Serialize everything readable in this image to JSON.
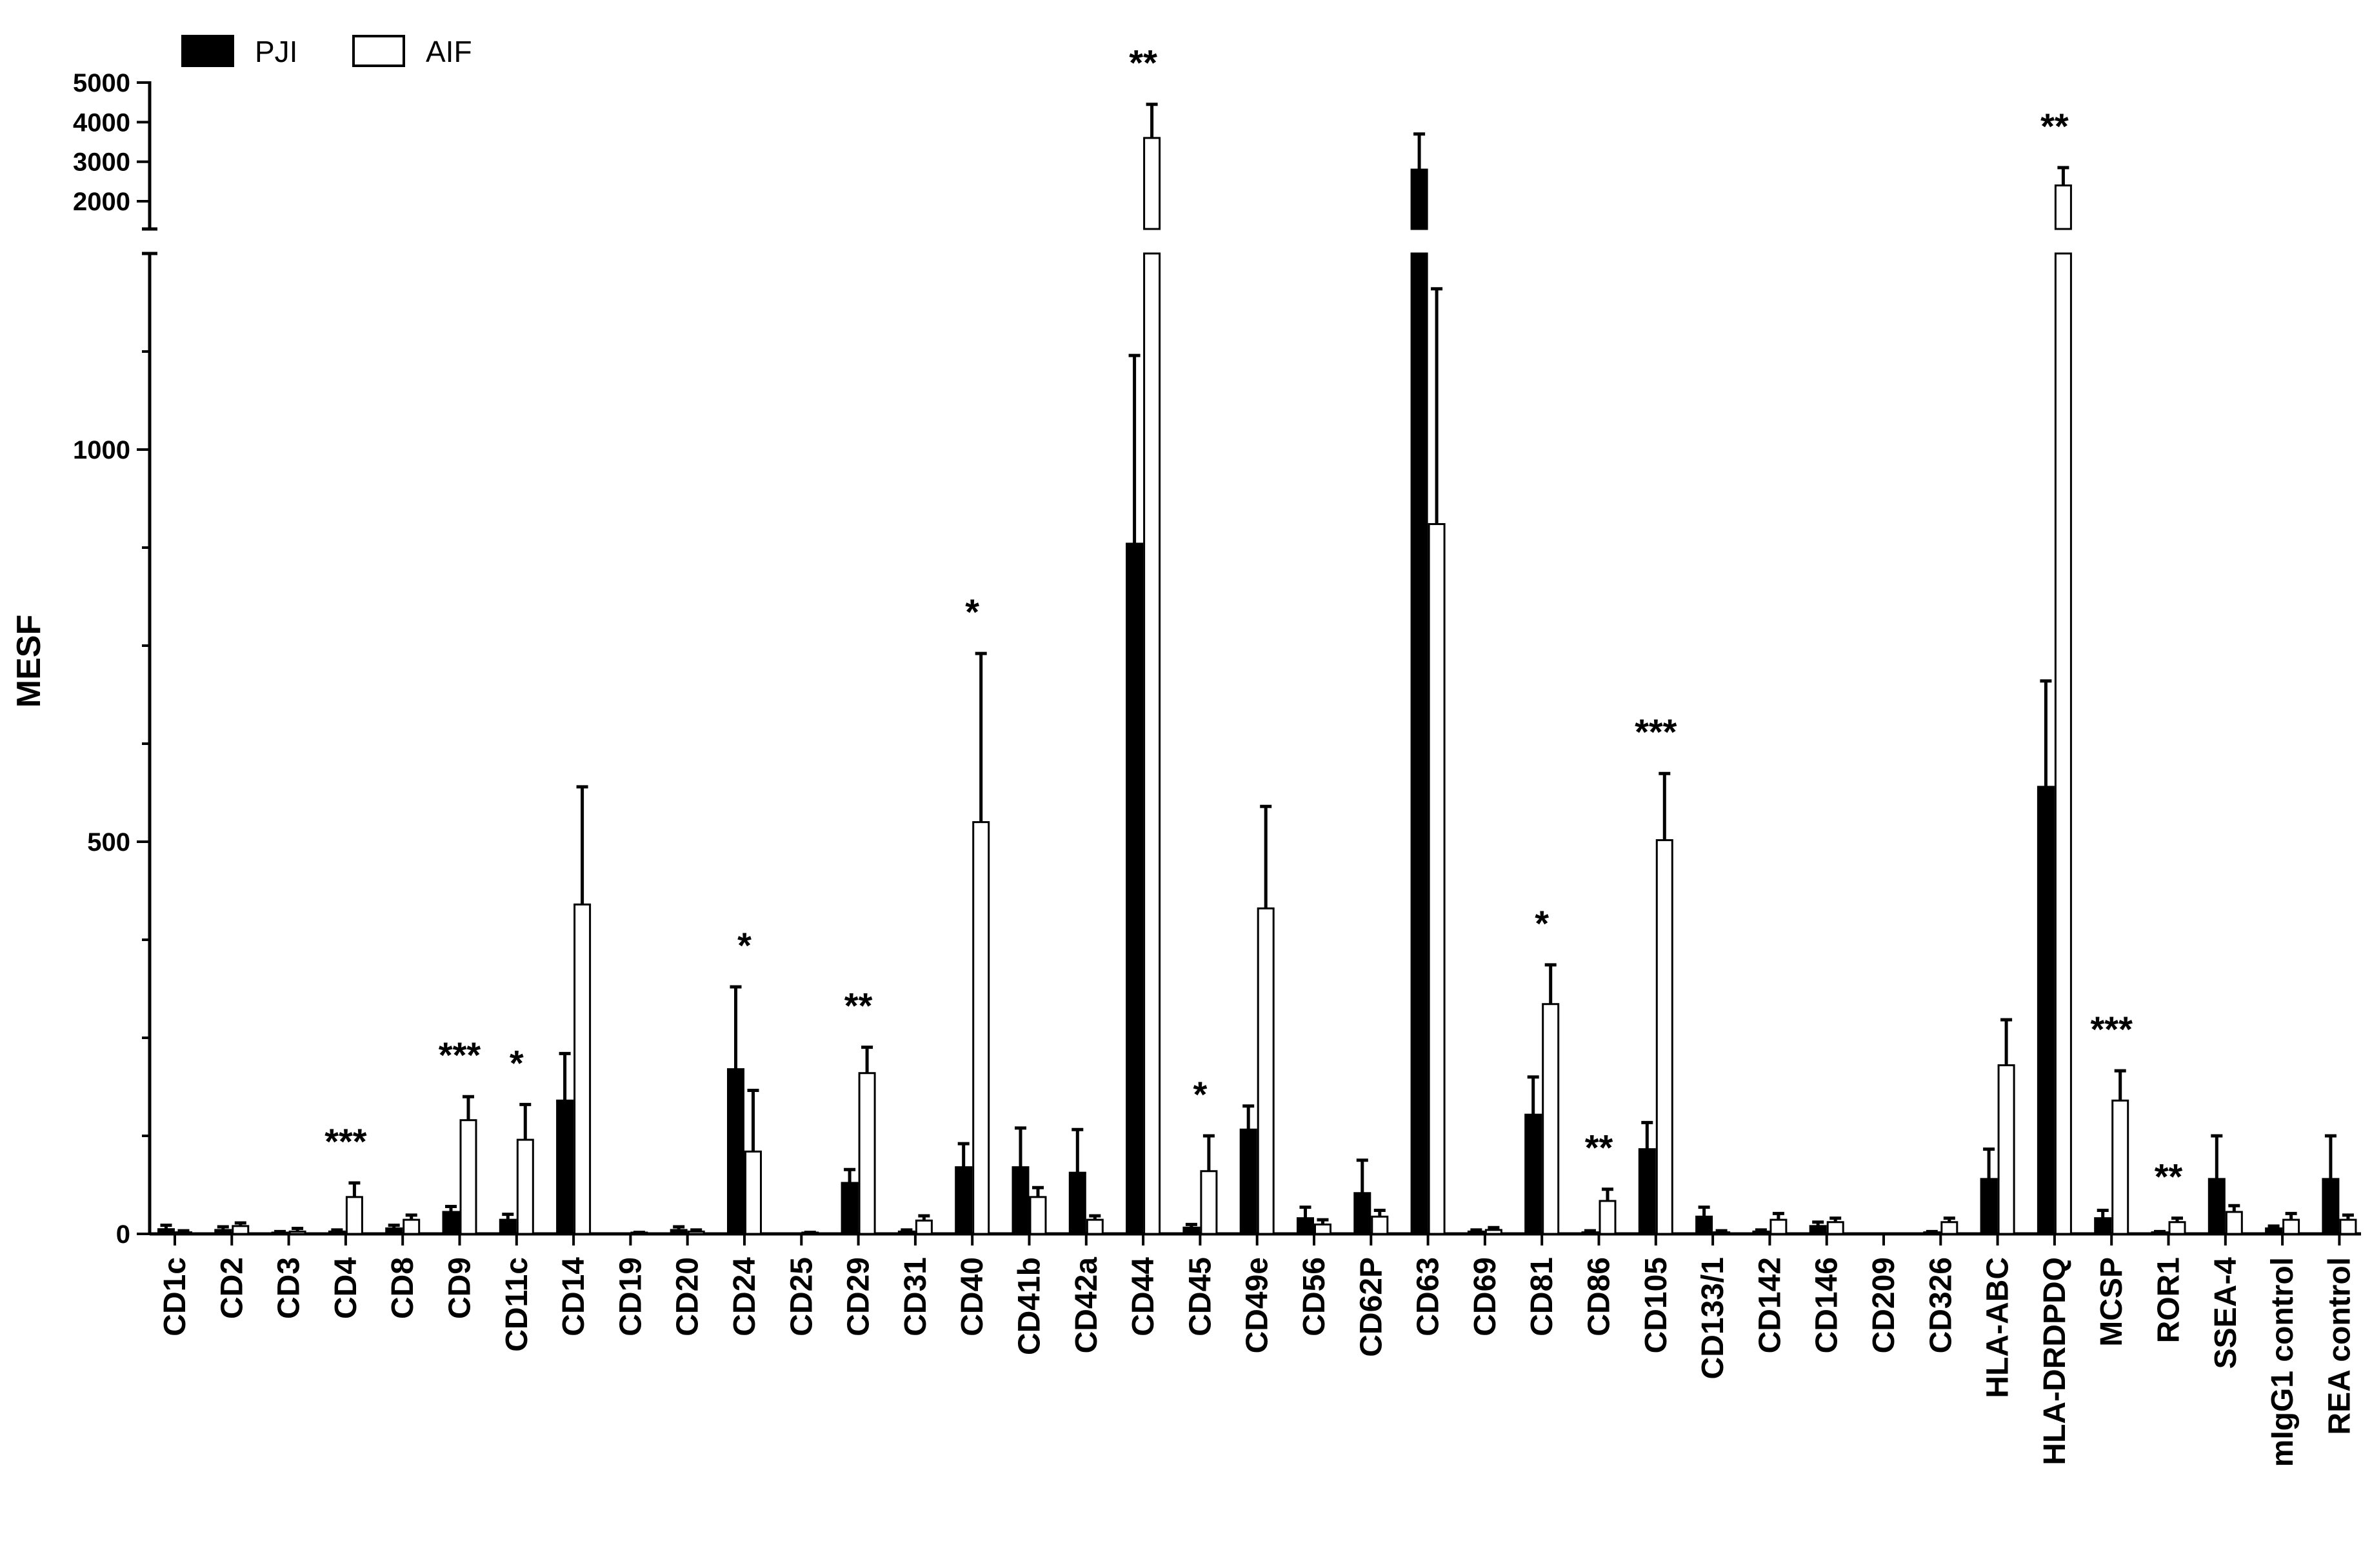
{
  "chart_data": {
    "type": "bar",
    "ylabel": "MESF",
    "axis_break": {
      "lower_range": [
        0,
        1250
      ],
      "upper_range": [
        1300,
        5000
      ]
    },
    "y_ticks_lower": [
      0,
      500,
      1000
    ],
    "y_tick_labels_lower": [
      "0",
      "500",
      "1000"
    ],
    "y_ticks_upper": [
      2000,
      3000,
      4000,
      5000
    ],
    "y_tick_labels_upper": [
      "2000",
      "3000",
      "4000",
      "5000"
    ],
    "legend": {
      "position": "top-left",
      "entries": [
        "PJI",
        "AIF"
      ]
    },
    "colors": {
      "PJI": "#000000",
      "AIF": "#ffffff",
      "stroke": "#000000"
    },
    "categories": [
      "CD1c",
      "CD2",
      "CD3",
      "CD4",
      "CD8",
      "CD9",
      "CD11c",
      "CD14",
      "CD19",
      "CD20",
      "CD24",
      "CD25",
      "CD29",
      "CD31",
      "CD40",
      "CD41b",
      "CD42a",
      "CD44",
      "CD45",
      "CD49e",
      "CD56",
      "CD62P",
      "CD63",
      "CD69",
      "CD81",
      "CD86",
      "CD105",
      "CD133/1",
      "CD142",
      "CD146",
      "CD209",
      "CD326",
      "HLA-ABC",
      "HLA-DRDPDQ",
      "MCSP",
      "ROR1",
      "SSEA-4",
      "mIgG1 control",
      "REA control"
    ],
    "series": [
      {
        "name": "PJI",
        "values": [
          6,
          5,
          1,
          3,
          7,
          28,
          18,
          170,
          0,
          5,
          210,
          0,
          65,
          3,
          85,
          85,
          78,
          880,
          8,
          133,
          20,
          52,
          2800,
          3,
          152,
          2,
          108,
          22,
          3,
          10,
          0,
          2,
          70,
          570,
          20,
          2,
          70,
          7,
          70
        ],
        "errors": [
          5,
          4,
          2,
          2,
          4,
          7,
          7,
          60,
          0,
          4,
          105,
          0,
          17,
          2,
          30,
          50,
          55,
          240,
          4,
          30,
          14,
          42,
          900,
          2,
          48,
          2,
          34,
          12,
          2,
          5,
          0,
          1,
          38,
          135,
          10,
          1,
          55,
          3,
          55
        ]
      },
      {
        "name": "AIF",
        "values": [
          2,
          10,
          3,
          47,
          18,
          145,
          120,
          420,
          1,
          3,
          105,
          1,
          205,
          17,
          525,
          47,
          18,
          3600,
          80,
          415,
          12,
          22,
          905,
          5,
          293,
          42,
          502,
          2,
          18,
          15,
          0,
          15,
          215,
          2400,
          170,
          15,
          28,
          18,
          18
        ],
        "errors": [
          2,
          4,
          4,
          18,
          6,
          30,
          45,
          150,
          1,
          2,
          78,
          1,
          33,
          6,
          215,
          12,
          5,
          850,
          45,
          130,
          6,
          8,
          300,
          3,
          50,
          15,
          85,
          2,
          8,
          5,
          0,
          5,
          58,
          450,
          38,
          5,
          8,
          8,
          6
        ]
      }
    ],
    "significance": [
      {
        "category": "CD4",
        "label": "***"
      },
      {
        "category": "CD9",
        "label": "***"
      },
      {
        "category": "CD11c",
        "label": "*"
      },
      {
        "category": "CD24",
        "label": "*"
      },
      {
        "category": "CD29",
        "label": "**"
      },
      {
        "category": "CD40",
        "label": "*"
      },
      {
        "category": "CD44",
        "label": "**"
      },
      {
        "category": "CD45",
        "label": "*"
      },
      {
        "category": "CD81",
        "label": "*"
      },
      {
        "category": "CD86",
        "label": "**"
      },
      {
        "category": "CD105",
        "label": "***"
      },
      {
        "category": "HLA-DRDPDQ",
        "label": "**"
      },
      {
        "category": "MCSP",
        "label": "***"
      },
      {
        "category": "ROR1",
        "label": "**"
      }
    ]
  }
}
